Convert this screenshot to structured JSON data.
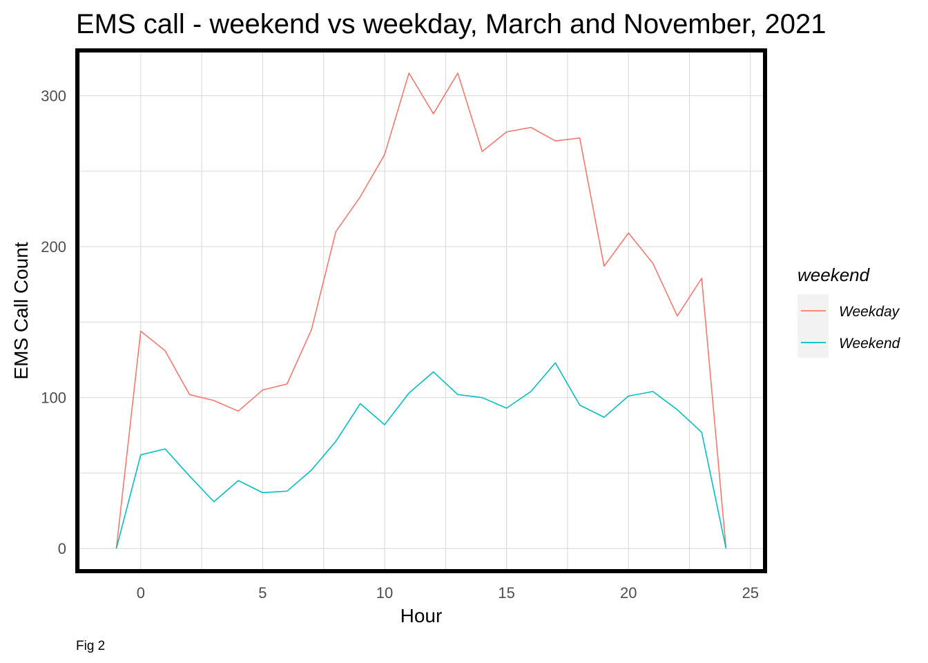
{
  "chart_data": {
    "type": "line",
    "title": "EMS call - weekend vs weekday, March and November, 2021",
    "xlabel": "Hour",
    "ylabel": "EMS Call Count",
    "caption": "Fig 2",
    "xlim": [
      -2.6,
      25.6
    ],
    "ylim": [
      -15,
      330
    ],
    "x_ticks": [
      0,
      5,
      10,
      15,
      20,
      25
    ],
    "y_ticks": [
      0,
      100,
      200,
      300
    ],
    "grid": true,
    "legend": {
      "title": "weekend",
      "position": "right"
    },
    "x": [
      -1,
      0,
      1,
      2,
      3,
      4,
      5,
      6,
      7,
      8,
      9,
      10,
      11,
      12,
      13,
      14,
      15,
      16,
      17,
      18,
      19,
      20,
      21,
      22,
      23,
      24
    ],
    "series": [
      {
        "name": "Weekday",
        "color": "#F8766D",
        "values": [
          0,
          144,
          131,
          102,
          98,
          91,
          105,
          109,
          145,
          210,
          233,
          261,
          315,
          288,
          315,
          263,
          276,
          279,
          270,
          272,
          187,
          209,
          189,
          154,
          179,
          0
        ]
      },
      {
        "name": "Weekend",
        "color": "#00BFC4",
        "values": [
          0,
          62,
          66,
          48,
          31,
          45,
          37,
          38,
          52,
          71,
          96,
          82,
          103,
          117,
          102,
          100,
          93,
          104,
          123,
          95,
          87,
          101,
          104,
          92,
          77,
          0
        ]
      }
    ]
  }
}
